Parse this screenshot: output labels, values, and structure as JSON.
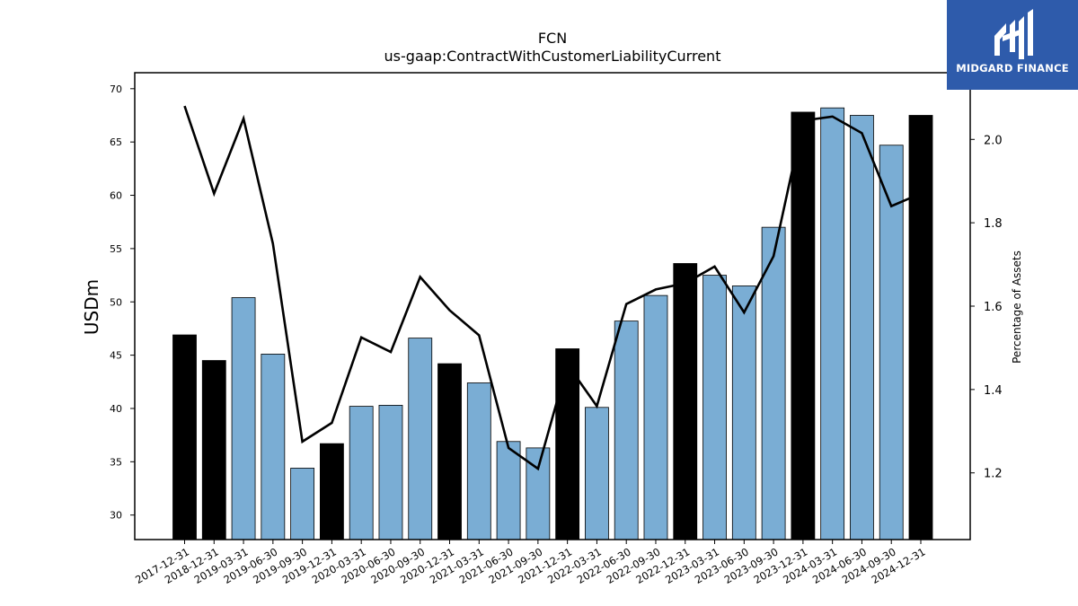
{
  "chart_data": {
    "type": "bar",
    "title": "FCN",
    "subtitle": "us-gaap:ContractWithCustomerLiabilityCurrent",
    "ylabel": "USDm",
    "y2label": "Percentage of Assets",
    "ylim": [
      27.7,
      71.5
    ],
    "y2lim": [
      1.04,
      2.16
    ],
    "yticks": [
      30,
      35,
      40,
      45,
      50,
      55,
      60,
      65,
      70
    ],
    "y2ticks": [
      1.2,
      1.4,
      1.6,
      1.8,
      2.0
    ],
    "categories": [
      "2017-12-31",
      "2018-12-31",
      "2019-03-31",
      "2019-06-30",
      "2019-09-30",
      "2019-12-31",
      "2020-03-31",
      "2020-06-30",
      "2020-09-30",
      "2020-12-31",
      "2021-03-31",
      "2021-06-30",
      "2021-09-30",
      "2021-12-31",
      "2022-03-31",
      "2022-06-30",
      "2022-09-30",
      "2022-12-31",
      "2023-03-31",
      "2023-06-30",
      "2023-09-30",
      "2023-12-31",
      "2024-03-31",
      "2024-06-30",
      "2024-09-30",
      "2024-12-31"
    ],
    "series": [
      {
        "type": "bar",
        "values": [
          46.9,
          44.5,
          50.4,
          45.1,
          34.4,
          36.7,
          40.2,
          40.3,
          46.6,
          44.2,
          42.4,
          36.9,
          36.3,
          45.6,
          40.1,
          48.2,
          50.6,
          53.6,
          52.5,
          51.5,
          57.0,
          67.8,
          68.2,
          67.5,
          64.7,
          67.5
        ],
        "annual": [
          true,
          true,
          false,
          false,
          false,
          true,
          false,
          false,
          false,
          true,
          false,
          false,
          false,
          true,
          false,
          false,
          false,
          true,
          false,
          false,
          false,
          true,
          false,
          false,
          false,
          true
        ]
      },
      {
        "type": "line",
        "axis": "right",
        "values": [
          2.08,
          1.87,
          2.05,
          1.75,
          1.275,
          1.32,
          1.525,
          1.49,
          1.67,
          1.59,
          1.53,
          1.26,
          1.21,
          1.46,
          1.36,
          1.605,
          1.64,
          1.655,
          1.695,
          1.585,
          1.72,
          2.045,
          2.055,
          2.015,
          1.84,
          1.87
        ]
      }
    ],
    "colors": {
      "annual_bar": "#000000",
      "quarter_bar": "#7aadd4",
      "line": "#000000"
    }
  },
  "logo": {
    "text": "MIDGARD FINANCE",
    "bg": "#2e5bab"
  }
}
